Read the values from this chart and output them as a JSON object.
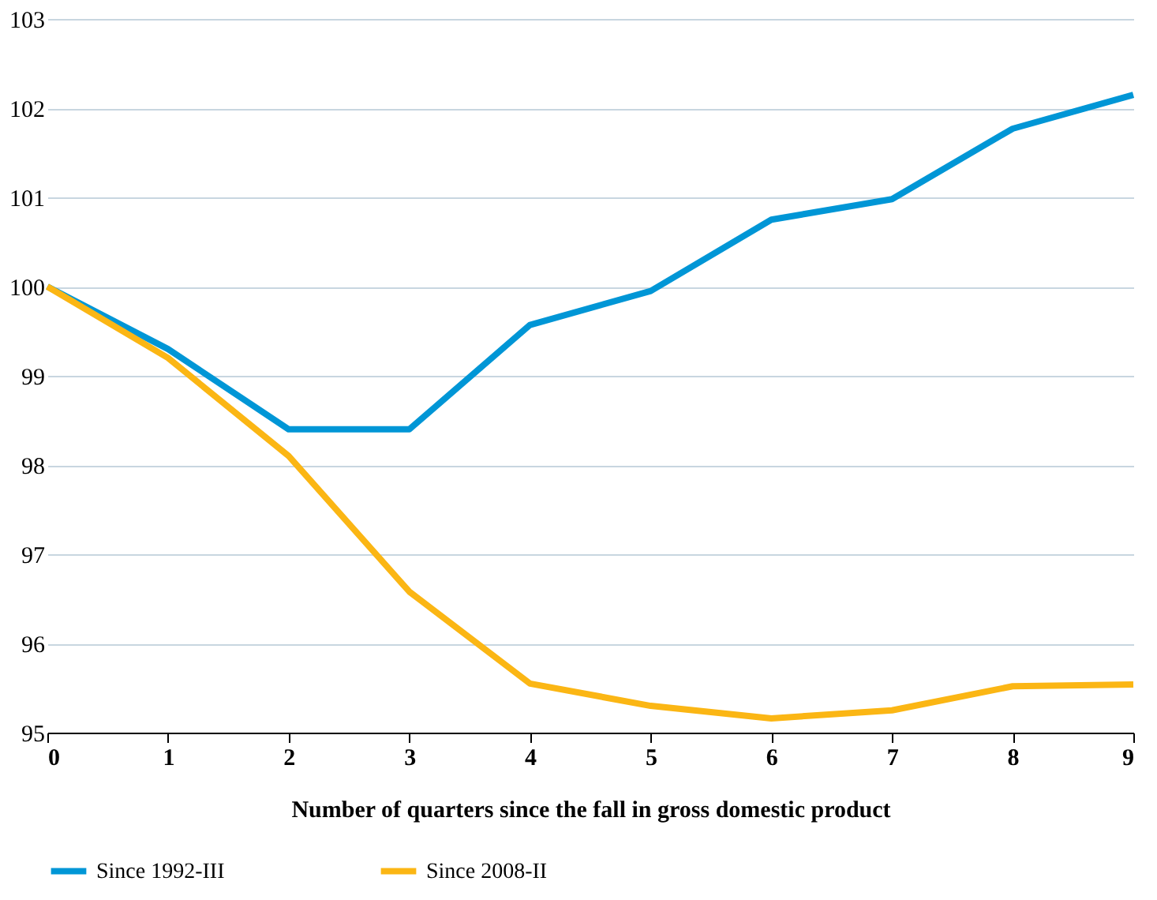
{
  "chart_data": {
    "type": "line",
    "xlabel": "Number of quarters since the fall in gross domestic product",
    "x": [
      0,
      1,
      2,
      3,
      4,
      5,
      6,
      7,
      8,
      9
    ],
    "series": [
      {
        "name": "Since 1992-III",
        "color": "#0096d6",
        "values": [
          100.0,
          99.3,
          98.4,
          98.4,
          99.57,
          99.95,
          100.75,
          100.98,
          101.77,
          102.15
        ]
      },
      {
        "name": "Since 2008-II",
        "color": "#fbb614",
        "values": [
          100.0,
          99.2,
          98.1,
          96.58,
          95.55,
          95.3,
          95.16,
          95.25,
          95.52,
          95.54
        ]
      }
    ],
    "xlim": [
      0,
      9
    ],
    "xticks": [
      0,
      1,
      2,
      3,
      4,
      5,
      6,
      7,
      8,
      9
    ],
    "ylim": [
      95,
      103
    ],
    "yticks": [
      95,
      96,
      97,
      98,
      99,
      100,
      101,
      102,
      103
    ],
    "grid": "y",
    "legend": "bottom",
    "marker": "none",
    "line_style": "solid"
  }
}
